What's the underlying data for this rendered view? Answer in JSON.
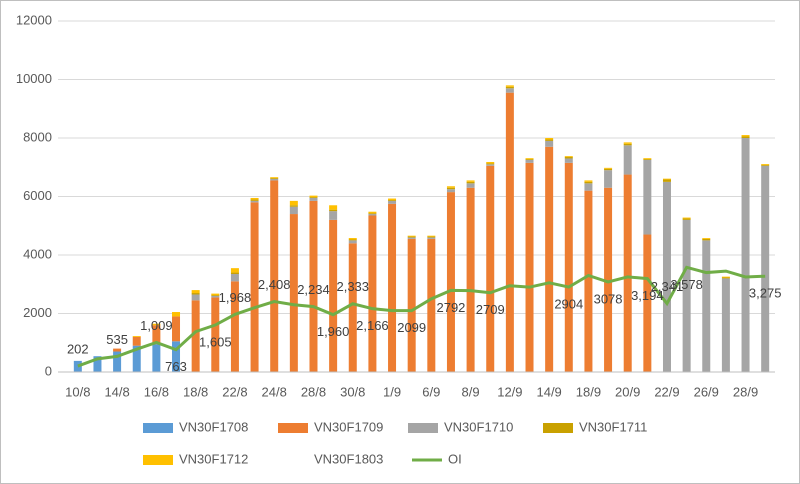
{
  "chart_data": {
    "type": "bar_line",
    "categories": [
      "10/8",
      null,
      "14/8",
      null,
      "16/8",
      null,
      "18/8",
      null,
      "22/8",
      null,
      "24/8",
      null,
      "28/8",
      null,
      "30/8",
      null,
      "1/9",
      null,
      "6/9",
      null,
      "8/9",
      null,
      "12/9",
      null,
      "14/9",
      null,
      "18/9",
      null,
      "20/9",
      null,
      "22/9",
      null,
      "26/9",
      null,
      "28/9",
      null
    ],
    "series": [
      {
        "name": "VN30F1708",
        "color": "#5b9bd5",
        "values": [
          380,
          540,
          700,
          900,
          950,
          1050,
          0,
          0,
          0,
          0,
          0,
          0,
          0,
          0,
          0,
          0,
          0,
          0,
          0,
          0,
          0,
          0,
          0,
          0,
          0,
          0,
          0,
          0,
          0,
          0,
          0,
          0,
          0,
          0,
          0,
          0
        ]
      },
      {
        "name": "VN30F1709",
        "color": "#ed7d31",
        "values": [
          0,
          0,
          100,
          300,
          650,
          850,
          2450,
          2550,
          3100,
          5800,
          6550,
          5400,
          5850,
          5200,
          4400,
          5350,
          5750,
          4550,
          4550,
          6150,
          6300,
          7050,
          9550,
          7150,
          7700,
          7150,
          6200,
          6300,
          6750,
          4700,
          0,
          0,
          0,
          0,
          0,
          0
        ]
      },
      {
        "name": "VN30F1710",
        "color": "#a5a5a5",
        "values": [
          0,
          0,
          0,
          0,
          0,
          0,
          200,
          50,
          250,
          50,
          50,
          250,
          100,
          300,
          100,
          50,
          100,
          50,
          50,
          100,
          150,
          50,
          150,
          100,
          200,
          150,
          250,
          600,
          1000,
          2550,
          6500,
          5200,
          4500,
          3200,
          8000,
          7050
        ]
      },
      {
        "name": "VN30F1711",
        "color": "#c9a100",
        "values": [
          0,
          0,
          0,
          0,
          0,
          0,
          50,
          30,
          50,
          50,
          30,
          50,
          30,
          50,
          30,
          30,
          30,
          30,
          30,
          50,
          50,
          30,
          50,
          30,
          50,
          50,
          50,
          50,
          50,
          30,
          80,
          50,
          50,
          30,
          50,
          30
        ]
      },
      {
        "name": "VN30F1712",
        "color": "#ffc000",
        "values": [
          0,
          0,
          0,
          30,
          50,
          150,
          100,
          50,
          150,
          50,
          30,
          150,
          50,
          150,
          50,
          50,
          50,
          30,
          30,
          50,
          50,
          50,
          50,
          30,
          50,
          30,
          50,
          30,
          50,
          30,
          30,
          30,
          30,
          30,
          50,
          30
        ]
      },
      {
        "name": "VN30F1803",
        "color": "#ffffff",
        "values": [
          0,
          0,
          0,
          0,
          0,
          0,
          0,
          0,
          0,
          0,
          0,
          0,
          0,
          0,
          0,
          0,
          0,
          0,
          0,
          0,
          0,
          0,
          0,
          0,
          0,
          0,
          0,
          0,
          0,
          0,
          0,
          0,
          0,
          0,
          0,
          0
        ]
      }
    ],
    "line": {
      "name": "OI",
      "color": "#70ad47",
      "values": [
        202,
        450,
        535,
        780,
        1009,
        763,
        1380,
        1605,
        1968,
        2200,
        2408,
        2300,
        2234,
        1960,
        2333,
        2166,
        2100,
        2099,
        2500,
        2792,
        2780,
        2709,
        2950,
        2900,
        3050,
        2904,
        3300,
        3078,
        3250,
        3194,
        2341,
        3578,
        3400,
        3450,
        3250,
        3275
      ],
      "value_labels": [
        "202",
        null,
        "535",
        null,
        "1,009",
        "763",
        null,
        "1,605",
        "1,968",
        null,
        "2,408",
        null,
        "2,234",
        "1,960",
        "2,333",
        "2,166",
        null,
        "2099",
        null,
        "2792",
        null,
        "2709",
        null,
        null,
        null,
        "2904",
        null,
        "3078",
        null,
        "3,194",
        "2,341",
        "3,578",
        null,
        null,
        null,
        "3,275"
      ]
    },
    "ylim": [
      0,
      12000
    ],
    "yticks": [
      0,
      2000,
      4000,
      6000,
      8000,
      10000,
      12000
    ],
    "grid": true
  }
}
